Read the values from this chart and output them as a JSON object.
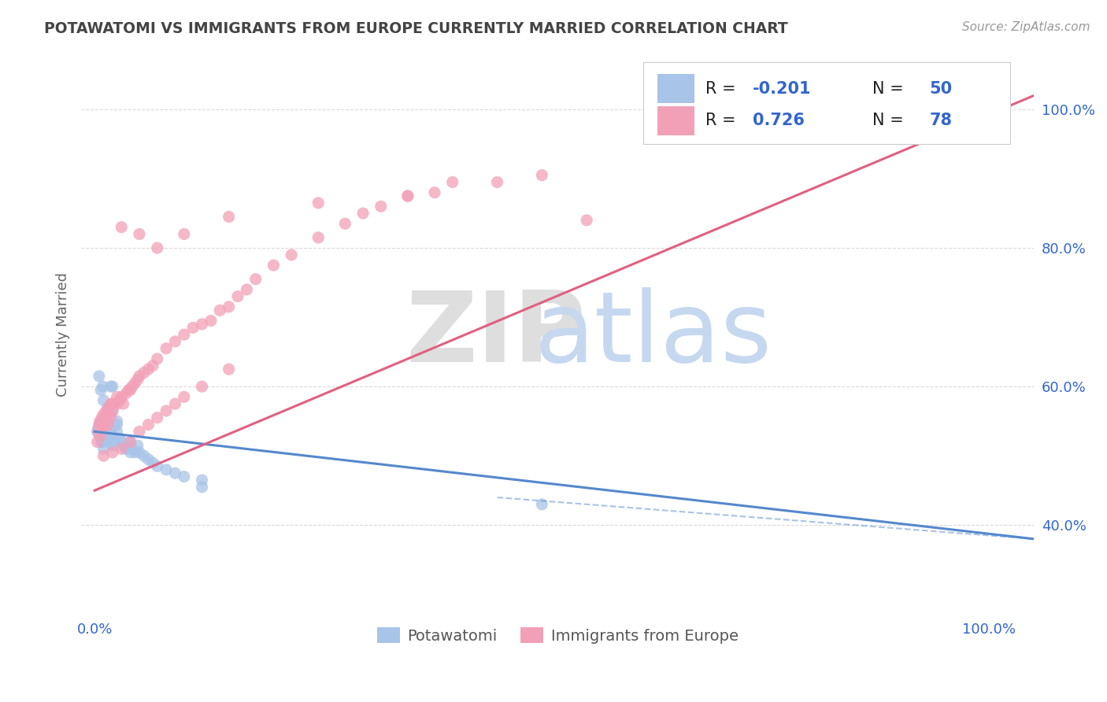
{
  "title": "POTAWATOMI VS IMMIGRANTS FROM EUROPE CURRENTLY MARRIED CORRELATION CHART",
  "source": "Source: ZipAtlas.com",
  "ylabel_left": "Currently Married",
  "blue_color": "#a8c4e8",
  "pink_color": "#f2a0b8",
  "blue_line_color": "#5588cc",
  "pink_line_color": "#e06080",
  "legend_blue_r": "-0.201",
  "legend_blue_n": "50",
  "legend_pink_r": "0.726",
  "legend_pink_n": "78",
  "watermark_zip": "ZIP",
  "watermark_atlas": "atlas",
  "ytick_labels": [
    "40.0%",
    "60.0%",
    "80.0%",
    "100.0%"
  ],
  "ytick_vals": [
    0.4,
    0.6,
    0.8,
    1.0
  ],
  "xtick_labels": [
    "0.0%",
    "100.0%"
  ],
  "xtick_vals": [
    0.0,
    1.0
  ],
  "xlim": [
    -0.015,
    1.05
  ],
  "ylim": [
    0.27,
    1.08
  ],
  "blue_line": [
    [
      0.0,
      0.535
    ],
    [
      1.05,
      0.38
    ]
  ],
  "pink_line": [
    [
      0.0,
      0.45
    ],
    [
      1.05,
      1.02
    ]
  ],
  "blue_scatter_x": [
    0.003,
    0.004,
    0.005,
    0.006,
    0.007,
    0.008,
    0.009,
    0.01,
    0.01,
    0.012,
    0.013,
    0.015,
    0.015,
    0.016,
    0.018,
    0.02,
    0.02,
    0.022,
    0.025,
    0.025,
    0.028,
    0.03,
    0.032,
    0.035,
    0.038,
    0.04,
    0.04,
    0.042,
    0.045,
    0.048,
    0.05,
    0.055,
    0.06,
    0.065,
    0.07,
    0.08,
    0.09,
    0.1,
    0.12,
    0.005,
    0.007,
    0.009,
    0.01,
    0.015,
    0.018,
    0.02,
    0.02,
    0.025,
    0.12,
    0.5
  ],
  "blue_scatter_y": [
    0.535,
    0.54,
    0.53,
    0.545,
    0.52,
    0.525,
    0.52,
    0.55,
    0.51,
    0.545,
    0.53,
    0.545,
    0.52,
    0.525,
    0.535,
    0.53,
    0.515,
    0.52,
    0.535,
    0.545,
    0.525,
    0.52,
    0.515,
    0.51,
    0.515,
    0.52,
    0.505,
    0.51,
    0.505,
    0.515,
    0.505,
    0.5,
    0.495,
    0.49,
    0.485,
    0.48,
    0.475,
    0.47,
    0.465,
    0.615,
    0.595,
    0.6,
    0.58,
    0.57,
    0.6,
    0.6,
    0.565,
    0.55,
    0.455,
    0.43
  ],
  "pink_scatter_x": [
    0.003,
    0.004,
    0.005,
    0.006,
    0.007,
    0.008,
    0.009,
    0.01,
    0.01,
    0.011,
    0.012,
    0.013,
    0.015,
    0.015,
    0.016,
    0.018,
    0.018,
    0.02,
    0.02,
    0.022,
    0.025,
    0.025,
    0.028,
    0.03,
    0.032,
    0.035,
    0.038,
    0.04,
    0.042,
    0.045,
    0.048,
    0.05,
    0.055,
    0.06,
    0.065,
    0.07,
    0.08,
    0.09,
    0.1,
    0.11,
    0.12,
    0.13,
    0.14,
    0.15,
    0.16,
    0.17,
    0.18,
    0.2,
    0.22,
    0.25,
    0.28,
    0.3,
    0.32,
    0.35,
    0.38,
    0.4,
    0.01,
    0.02,
    0.03,
    0.04,
    0.05,
    0.06,
    0.07,
    0.08,
    0.09,
    0.1,
    0.12,
    0.15,
    0.03,
    0.05,
    0.07,
    0.1,
    0.15,
    0.25,
    0.35,
    0.45,
    0.5,
    0.55
  ],
  "pink_scatter_y": [
    0.52,
    0.535,
    0.545,
    0.55,
    0.53,
    0.555,
    0.54,
    0.55,
    0.56,
    0.545,
    0.555,
    0.565,
    0.56,
    0.545,
    0.57,
    0.575,
    0.555,
    0.575,
    0.565,
    0.575,
    0.575,
    0.585,
    0.58,
    0.585,
    0.575,
    0.59,
    0.595,
    0.595,
    0.6,
    0.605,
    0.61,
    0.615,
    0.62,
    0.625,
    0.63,
    0.64,
    0.655,
    0.665,
    0.675,
    0.685,
    0.69,
    0.695,
    0.71,
    0.715,
    0.73,
    0.74,
    0.755,
    0.775,
    0.79,
    0.815,
    0.835,
    0.85,
    0.86,
    0.875,
    0.88,
    0.895,
    0.5,
    0.505,
    0.51,
    0.52,
    0.535,
    0.545,
    0.555,
    0.565,
    0.575,
    0.585,
    0.6,
    0.625,
    0.83,
    0.82,
    0.8,
    0.82,
    0.845,
    0.865,
    0.875,
    0.895,
    0.905,
    0.84
  ]
}
